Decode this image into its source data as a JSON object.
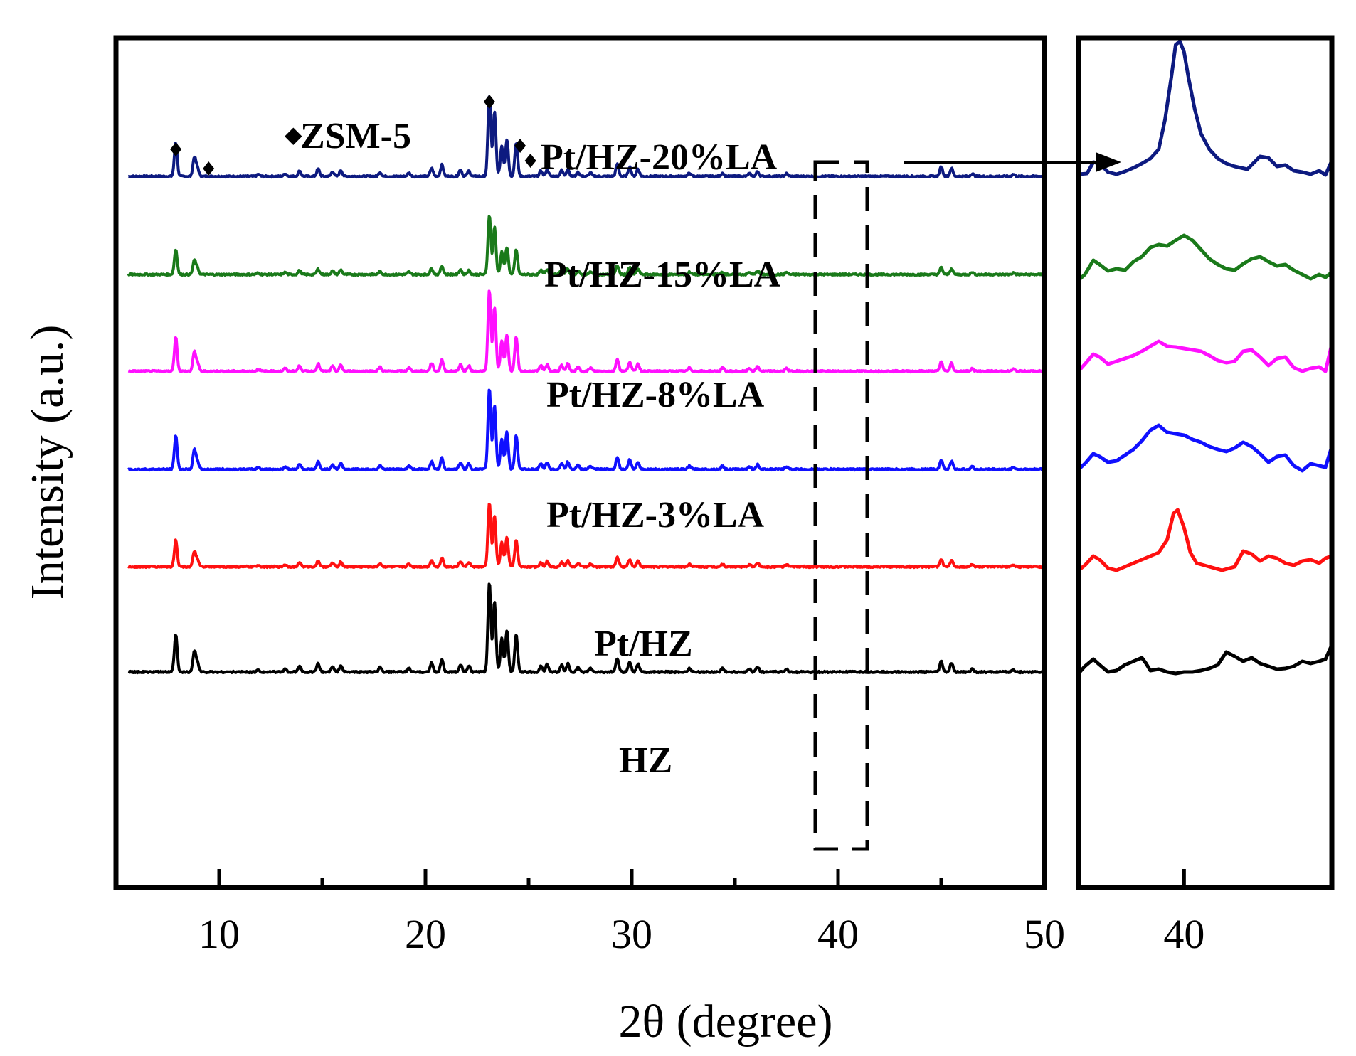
{
  "chart_data": {
    "type": "line",
    "title": "",
    "xlabel": "2θ (degree)",
    "ylabel": "Intensity (a.u.)",
    "xlim": [
      5,
      50
    ],
    "xticks": [
      10,
      20,
      30,
      40,
      50
    ],
    "inset": {
      "xlim": [
        37.5,
        43.5
      ],
      "xticks": [
        40
      ],
      "zoom_window": [
        39,
        41.5
      ]
    },
    "legend": {
      "text": "ZSM-5",
      "marker": "◆"
    },
    "zsm5_marker_positions": [
      7.9,
      8.8,
      23.1,
      23.9,
      24.4
    ],
    "peaks": [
      {
        "x": 7.9,
        "h": 50
      },
      {
        "x": 8.8,
        "h": 28
      },
      {
        "x": 8.95,
        "h": 12
      },
      {
        "x": 11.9,
        "h": 3
      },
      {
        "x": 13.2,
        "h": 4
      },
      {
        "x": 13.9,
        "h": 8
      },
      {
        "x": 14.8,
        "h": 11
      },
      {
        "x": 15.5,
        "h": 7
      },
      {
        "x": 15.9,
        "h": 9
      },
      {
        "x": 17.8,
        "h": 6
      },
      {
        "x": 19.2,
        "h": 5
      },
      {
        "x": 20.3,
        "h": 12
      },
      {
        "x": 20.8,
        "h": 17
      },
      {
        "x": 21.7,
        "h": 10
      },
      {
        "x": 22.1,
        "h": 8
      },
      {
        "x": 23.1,
        "h": 120
      },
      {
        "x": 23.35,
        "h": 95
      },
      {
        "x": 23.7,
        "h": 45
      },
      {
        "x": 23.95,
        "h": 55
      },
      {
        "x": 24.4,
        "h": 50
      },
      {
        "x": 25.6,
        "h": 8
      },
      {
        "x": 25.9,
        "h": 10
      },
      {
        "x": 26.6,
        "h": 9
      },
      {
        "x": 26.9,
        "h": 11
      },
      {
        "x": 27.4,
        "h": 6
      },
      {
        "x": 28.0,
        "h": 5
      },
      {
        "x": 29.3,
        "h": 18
      },
      {
        "x": 29.9,
        "h": 14
      },
      {
        "x": 30.3,
        "h": 11
      },
      {
        "x": 32.8,
        "h": 5
      },
      {
        "x": 34.4,
        "h": 5
      },
      {
        "x": 35.7,
        "h": 4
      },
      {
        "x": 36.1,
        "h": 7
      },
      {
        "x": 37.5,
        "h": 4
      },
      {
        "x": 45.0,
        "h": 14
      },
      {
        "x": 45.5,
        "h": 12
      },
      {
        "x": 46.5,
        "h": 4
      },
      {
        "x": 48.5,
        "h": 3
      }
    ],
    "series": [
      {
        "name": "Pt/HZ-20%LA",
        "color": "#0d1a80",
        "baseline": 248,
        "peak_scale": 0.95,
        "inset": [
          [
            37.5,
            3
          ],
          [
            37.7,
            4
          ],
          [
            37.85,
            20
          ],
          [
            38.0,
            18
          ],
          [
            38.2,
            6
          ],
          [
            38.4,
            3
          ],
          [
            38.6,
            7
          ],
          [
            38.8,
            12
          ],
          [
            39.0,
            18
          ],
          [
            39.2,
            25
          ],
          [
            39.4,
            38
          ],
          [
            39.55,
            80
          ],
          [
            39.7,
            140
          ],
          [
            39.8,
            185
          ],
          [
            39.9,
            190
          ],
          [
            40.0,
            175
          ],
          [
            40.1,
            140
          ],
          [
            40.25,
            95
          ],
          [
            40.4,
            60
          ],
          [
            40.6,
            38
          ],
          [
            40.8,
            25
          ],
          [
            41.0,
            18
          ],
          [
            41.2,
            14
          ],
          [
            41.5,
            10
          ],
          [
            41.8,
            28
          ],
          [
            42.0,
            26
          ],
          [
            42.2,
            14
          ],
          [
            42.4,
            16
          ],
          [
            42.6,
            8
          ],
          [
            42.8,
            6
          ],
          [
            43.0,
            3
          ],
          [
            43.2,
            8
          ],
          [
            43.35,
            2
          ],
          [
            43.5,
            22
          ]
        ]
      },
      {
        "name": "Pt/HZ-15%LA",
        "color": "#1a7a1a",
        "baseline": 386,
        "peak_scale": 0.7,
        "inset": [
          [
            37.5,
            -8
          ],
          [
            37.65,
            0
          ],
          [
            37.85,
            20
          ],
          [
            38.0,
            14
          ],
          [
            38.2,
            5
          ],
          [
            38.4,
            8
          ],
          [
            38.6,
            6
          ],
          [
            38.8,
            18
          ],
          [
            39.0,
            25
          ],
          [
            39.2,
            38
          ],
          [
            39.4,
            42
          ],
          [
            39.6,
            40
          ],
          [
            39.8,
            48
          ],
          [
            40.0,
            55
          ],
          [
            40.2,
            48
          ],
          [
            40.4,
            35
          ],
          [
            40.6,
            22
          ],
          [
            40.8,
            14
          ],
          [
            41.0,
            8
          ],
          [
            41.2,
            6
          ],
          [
            41.4,
            15
          ],
          [
            41.6,
            22
          ],
          [
            41.8,
            25
          ],
          [
            42.0,
            18
          ],
          [
            42.2,
            12
          ],
          [
            42.4,
            14
          ],
          [
            42.6,
            6
          ],
          [
            42.8,
            0
          ],
          [
            43.0,
            -6
          ],
          [
            43.2,
            0
          ],
          [
            43.35,
            -4
          ],
          [
            43.5,
            3
          ]
        ]
      },
      {
        "name": "Pt/HZ-8%LA",
        "color": "#ff10ff",
        "baseline": 522,
        "peak_scale": 0.95,
        "inset": [
          [
            37.5,
            0
          ],
          [
            37.65,
            10
          ],
          [
            37.85,
            24
          ],
          [
            38.0,
            20
          ],
          [
            38.2,
            10
          ],
          [
            38.4,
            14
          ],
          [
            38.6,
            18
          ],
          [
            38.8,
            22
          ],
          [
            39.0,
            28
          ],
          [
            39.2,
            35
          ],
          [
            39.4,
            42
          ],
          [
            39.6,
            35
          ],
          [
            39.8,
            34
          ],
          [
            40.0,
            32
          ],
          [
            40.2,
            30
          ],
          [
            40.4,
            28
          ],
          [
            40.6,
            22
          ],
          [
            40.8,
            15
          ],
          [
            41.0,
            12
          ],
          [
            41.2,
            14
          ],
          [
            41.4,
            28
          ],
          [
            41.6,
            30
          ],
          [
            41.8,
            20
          ],
          [
            42.0,
            8
          ],
          [
            42.2,
            18
          ],
          [
            42.4,
            20
          ],
          [
            42.6,
            5
          ],
          [
            42.8,
            0
          ],
          [
            43.0,
            4
          ],
          [
            43.2,
            6
          ],
          [
            43.35,
            0
          ],
          [
            43.5,
            38
          ]
        ]
      },
      {
        "name": "Pt/HZ-3%LA",
        "color": "#1010ff",
        "baseline": 660,
        "peak_scale": 0.95,
        "inset": [
          [
            37.5,
            0
          ],
          [
            37.65,
            8
          ],
          [
            37.85,
            22
          ],
          [
            38.0,
            18
          ],
          [
            38.2,
            10
          ],
          [
            38.4,
            12
          ],
          [
            38.6,
            20
          ],
          [
            38.8,
            28
          ],
          [
            39.0,
            40
          ],
          [
            39.2,
            55
          ],
          [
            39.4,
            62
          ],
          [
            39.6,
            52
          ],
          [
            39.8,
            50
          ],
          [
            40.0,
            48
          ],
          [
            40.2,
            42
          ],
          [
            40.4,
            38
          ],
          [
            40.6,
            32
          ],
          [
            40.8,
            28
          ],
          [
            41.0,
            25
          ],
          [
            41.2,
            30
          ],
          [
            41.4,
            38
          ],
          [
            41.6,
            32
          ],
          [
            41.8,
            22
          ],
          [
            42.0,
            10
          ],
          [
            42.2,
            18
          ],
          [
            42.4,
            20
          ],
          [
            42.6,
            5
          ],
          [
            42.8,
            -2
          ],
          [
            43.0,
            8
          ],
          [
            43.2,
            5
          ],
          [
            43.35,
            3
          ],
          [
            43.5,
            32
          ]
        ]
      },
      {
        "name": "Pt/HZ",
        "color": "#ff1010",
        "baseline": 797,
        "peak_scale": 0.75,
        "inset": [
          [
            37.5,
            -5
          ],
          [
            37.65,
            2
          ],
          [
            37.85,
            15
          ],
          [
            38.0,
            10
          ],
          [
            38.2,
            -2
          ],
          [
            38.4,
            -5
          ],
          [
            38.6,
            0
          ],
          [
            38.8,
            5
          ],
          [
            39.0,
            10
          ],
          [
            39.2,
            15
          ],
          [
            39.4,
            20
          ],
          [
            39.6,
            38
          ],
          [
            39.75,
            75
          ],
          [
            39.85,
            80
          ],
          [
            40.0,
            55
          ],
          [
            40.15,
            20
          ],
          [
            40.3,
            5
          ],
          [
            40.6,
            0
          ],
          [
            40.9,
            -5
          ],
          [
            41.2,
            0
          ],
          [
            41.4,
            22
          ],
          [
            41.6,
            18
          ],
          [
            41.8,
            8
          ],
          [
            42.0,
            15
          ],
          [
            42.2,
            12
          ],
          [
            42.4,
            5
          ],
          [
            42.6,
            2
          ],
          [
            42.8,
            8
          ],
          [
            43.0,
            10
          ],
          [
            43.2,
            5
          ],
          [
            43.35,
            12
          ],
          [
            43.5,
            15
          ]
        ]
      },
      {
        "name": "HZ",
        "color": "#000000",
        "baseline": 945,
        "peak_scale": 1.05,
        "inset": [
          [
            37.5,
            -2
          ],
          [
            37.65,
            8
          ],
          [
            37.85,
            18
          ],
          [
            38.0,
            10
          ],
          [
            38.2,
            0
          ],
          [
            38.4,
            2
          ],
          [
            38.6,
            10
          ],
          [
            38.8,
            15
          ],
          [
            39.0,
            20
          ],
          [
            39.1,
            12
          ],
          [
            39.2,
            2
          ],
          [
            39.4,
            4
          ],
          [
            39.6,
            0
          ],
          [
            39.8,
            -2
          ],
          [
            40.0,
            0
          ],
          [
            40.2,
            0
          ],
          [
            40.4,
            2
          ],
          [
            40.6,
            5
          ],
          [
            40.8,
            10
          ],
          [
            41.0,
            28
          ],
          [
            41.2,
            22
          ],
          [
            41.4,
            15
          ],
          [
            41.6,
            20
          ],
          [
            41.8,
            12
          ],
          [
            42.0,
            8
          ],
          [
            42.2,
            4
          ],
          [
            42.4,
            5
          ],
          [
            42.6,
            8
          ],
          [
            42.8,
            15
          ],
          [
            43.0,
            12
          ],
          [
            43.2,
            15
          ],
          [
            43.35,
            18
          ],
          [
            43.5,
            38
          ]
        ]
      }
    ]
  }
}
